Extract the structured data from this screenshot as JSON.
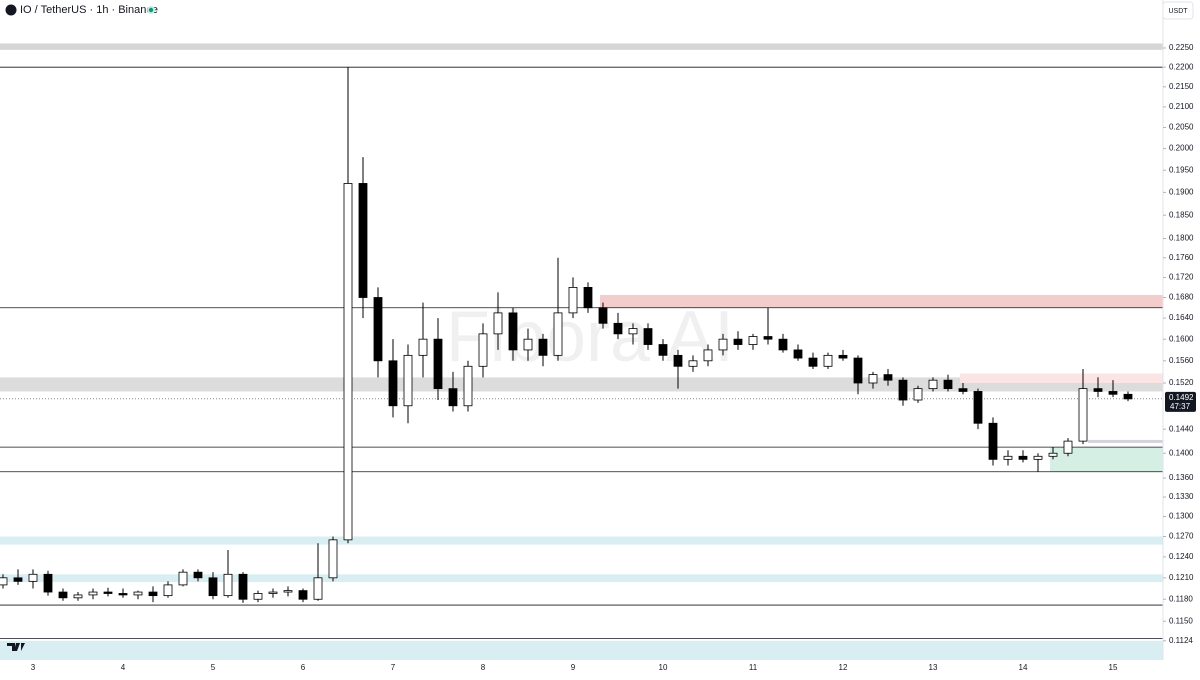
{
  "chart_data": {
    "type": "candlestick",
    "title": "IO / TetherUS · 1h · Binance",
    "currency_button": "USDT",
    "watermark": "Fibora AI",
    "countdown": "47:37",
    "log_scale": true,
    "up_color": "#ffffff",
    "down_color": "#000000",
    "ylim": [
      0.1099,
      0.238
    ],
    "yticks": [
      {
        "value": 0.225,
        "label": "0.2250"
      },
      {
        "value": 0.22,
        "label": "0.2200"
      },
      {
        "value": 0.215,
        "label": "0.2150"
      },
      {
        "value": 0.21,
        "label": "0.2100"
      },
      {
        "value": 0.205,
        "label": "0.2050"
      },
      {
        "value": 0.2,
        "label": "0.2000"
      },
      {
        "value": 0.195,
        "label": "0.1950"
      },
      {
        "value": 0.19,
        "label": "0.1900"
      },
      {
        "value": 0.185,
        "label": "0.1850"
      },
      {
        "value": 0.18,
        "label": "0.1800"
      },
      {
        "value": 0.176,
        "label": "0.1760"
      },
      {
        "value": 0.172,
        "label": "0.1720"
      },
      {
        "value": 0.168,
        "label": "0.1680"
      },
      {
        "value": 0.164,
        "label": "0.1640"
      },
      {
        "value": 0.16,
        "label": "0.1600"
      },
      {
        "value": 0.156,
        "label": "0.1560"
      },
      {
        "value": 0.152,
        "label": "0.1520"
      },
      {
        "value": 0.144,
        "label": "0.1440"
      },
      {
        "value": 0.14,
        "label": "0.1400"
      },
      {
        "value": 0.136,
        "label": "0.1360"
      },
      {
        "value": 0.133,
        "label": "0.1330"
      },
      {
        "value": 0.13,
        "label": "0.1300"
      },
      {
        "value": 0.127,
        "label": "0.1270"
      },
      {
        "value": 0.124,
        "label": "0.1240"
      },
      {
        "value": 0.121,
        "label": "0.1210"
      },
      {
        "value": 0.118,
        "label": "0.1180"
      },
      {
        "value": 0.115,
        "label": "0.1150"
      },
      0.1124
    ],
    "categories": [
      null,
      null,
      "3",
      null,
      null,
      null,
      null,
      null,
      "4",
      null,
      null,
      null,
      null,
      null,
      "5",
      null,
      null,
      null,
      null,
      null,
      "6",
      null,
      null,
      null,
      null,
      null,
      "7",
      null,
      null,
      null,
      null,
      null,
      "8",
      null,
      null,
      null,
      null,
      null,
      "9",
      null,
      null,
      null,
      null,
      null,
      "10",
      null,
      null,
      null,
      null,
      null,
      "11",
      null,
      null,
      null,
      null,
      null,
      "12",
      null,
      null,
      null,
      null,
      null,
      "13",
      null,
      null,
      null,
      null,
      null,
      "14",
      null,
      null,
      null,
      null,
      null,
      "15",
      null
    ],
    "open": [
      0.12,
      0.121,
      0.1205,
      0.1215,
      0.119,
      0.1182,
      0.1186,
      0.119,
      0.1188,
      0.1186,
      0.119,
      0.1185,
      0.12,
      0.1218,
      0.121,
      0.1185,
      0.1215,
      0.118,
      0.1188,
      0.119,
      0.1192,
      0.118,
      0.121,
      0.1265,
      0.192,
      0.168,
      0.156,
      0.148,
      0.157,
      0.16,
      0.151,
      0.148,
      0.155,
      0.161,
      0.165,
      0.158,
      0.16,
      0.157,
      0.165,
      0.17,
      0.166,
      0.163,
      0.161,
      0.162,
      0.159,
      0.157,
      0.155,
      0.156,
      0.158,
      0.16,
      0.159,
      0.1605,
      0.16,
      0.158,
      0.1565,
      0.155,
      0.157,
      0.1565,
      0.152,
      0.1535,
      0.1525,
      0.149,
      0.151,
      0.1525,
      0.151,
      0.1505,
      0.145,
      0.139,
      0.1395,
      0.139,
      0.1395,
      0.14,
      0.142,
      0.151,
      0.1505,
      0.15
    ],
    "high": [
      0.1215,
      0.1222,
      0.1222,
      0.122,
      0.1195,
      0.119,
      0.1195,
      0.1196,
      0.1195,
      0.1192,
      0.1198,
      0.1205,
      0.1222,
      0.1222,
      0.1218,
      0.125,
      0.1218,
      0.1192,
      0.1195,
      0.1198,
      0.1195,
      0.126,
      0.127,
      0.22,
      0.198,
      0.17,
      0.16,
      0.159,
      0.167,
      0.164,
      0.154,
      0.156,
      0.163,
      0.169,
      0.166,
      0.162,
      0.161,
      0.176,
      0.172,
      0.171,
      0.167,
      0.165,
      0.163,
      0.163,
      0.16,
      0.158,
      0.157,
      0.159,
      0.161,
      0.1615,
      0.161,
      0.166,
      0.161,
      0.159,
      0.1575,
      0.1575,
      0.158,
      0.157,
      0.154,
      0.1545,
      0.153,
      0.1515,
      0.153,
      0.1535,
      0.152,
      0.151,
      0.146,
      0.1405,
      0.1405,
      0.14,
      0.141,
      0.1425,
      0.1545,
      0.153,
      0.1525,
      0.1505
    ],
    "low": [
      0.1195,
      0.12,
      0.1195,
      0.1185,
      0.1178,
      0.1178,
      0.118,
      0.1184,
      0.1182,
      0.118,
      0.1176,
      0.1182,
      0.1198,
      0.1205,
      0.118,
      0.1182,
      0.1175,
      0.1176,
      0.1182,
      0.1184,
      0.1176,
      0.1178,
      0.1205,
      0.126,
      0.164,
      0.153,
      0.146,
      0.145,
      0.153,
      0.149,
      0.147,
      0.147,
      0.153,
      0.158,
      0.156,
      0.156,
      0.155,
      0.156,
      0.164,
      0.165,
      0.162,
      0.16,
      0.159,
      0.158,
      0.156,
      0.151,
      0.154,
      0.155,
      0.157,
      0.158,
      0.158,
      0.159,
      0.1575,
      0.156,
      0.1545,
      0.1545,
      0.156,
      0.15,
      0.151,
      0.1515,
      0.148,
      0.1485,
      0.1505,
      0.1505,
      0.15,
      0.144,
      0.138,
      0.138,
      0.1385,
      0.137,
      0.139,
      0.1395,
      0.1415,
      0.1495,
      0.1495,
      0.1488
    ],
    "close": [
      0.121,
      0.1205,
      0.1215,
      0.119,
      0.1182,
      0.1186,
      0.119,
      0.1188,
      0.1186,
      0.119,
      0.1185,
      0.12,
      0.1218,
      0.121,
      0.1185,
      0.1215,
      0.118,
      0.1188,
      0.119,
      0.1192,
      0.118,
      0.121,
      0.1265,
      0.192,
      0.168,
      0.156,
      0.148,
      0.157,
      0.16,
      0.151,
      0.148,
      0.155,
      0.161,
      0.165,
      0.158,
      0.16,
      0.157,
      0.165,
      0.17,
      0.166,
      0.163,
      0.161,
      0.162,
      0.159,
      0.157,
      0.155,
      0.156,
      0.158,
      0.16,
      0.159,
      0.1605,
      0.16,
      0.158,
      0.1565,
      0.155,
      0.157,
      0.1565,
      0.152,
      0.1535,
      0.1525,
      0.149,
      0.151,
      0.1525,
      0.151,
      0.1505,
      0.145,
      0.139,
      0.1395,
      0.139,
      0.1395,
      0.14,
      0.142,
      0.151,
      0.1505,
      0.15,
      0.1492
    ],
    "levels": [
      0.22,
      0.166,
      0.141,
      0.137,
      0.1172,
      0.1127
    ],
    "zones": [
      {
        "range": [
          0.2245,
          0.2262
        ],
        "color": "#d6d6d6"
      },
      {
        "range": [
          0.1505,
          0.153
        ],
        "color": "#dcdcdc"
      },
      {
        "range": [
          0.166,
          0.1685
        ],
        "color": "#f3cccc"
      },
      {
        "range": [
          0.152,
          0.1537
        ],
        "color": "#fbe4e4"
      },
      {
        "range": [
          0.137,
          0.141
        ],
        "color": "#d5efe4"
      },
      {
        "range": [
          0.1417,
          0.1422
        ],
        "color": "#d3d3dc"
      },
      {
        "range": [
          0.1258,
          0.127
        ],
        "color": "#d8eef2"
      },
      {
        "range": [
          0.1204,
          0.1215
        ],
        "color": "#d8eef2"
      },
      {
        "range": [
          0.1099,
          0.1124
        ],
        "color": "#d8eef2"
      }
    ]
  }
}
